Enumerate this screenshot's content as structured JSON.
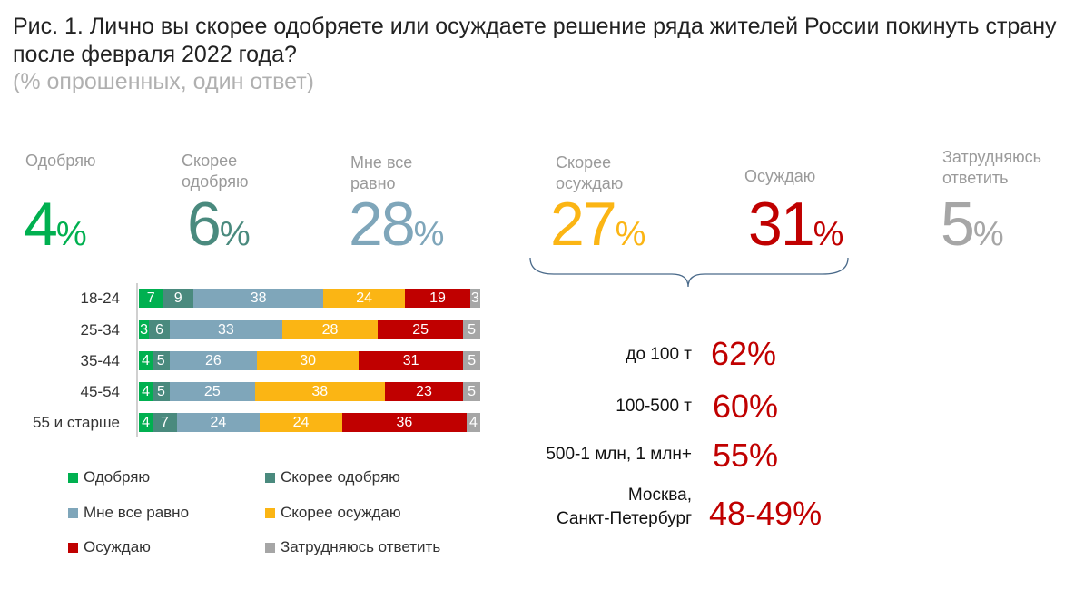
{
  "title": "Рис. 1. Лично вы скорее одобряете или осуждаете решение ряда жителей России покинуть страну после февраля 2022 года?",
  "subtitle": "(% опрошенных, один ответ)",
  "colors": {
    "approve": "#00b050",
    "rather_approve": "#4a8a7e",
    "indifferent": "#7fa6ba",
    "rather_condemn": "#fbb514",
    "condemn": "#c00000",
    "hard_to_say": "#a6a6a6"
  },
  "totals": [
    {
      "label": "Одобряю",
      "value": "4",
      "pct": "%"
    },
    {
      "label": "Скорее одобряю",
      "value": "6",
      "pct": "%"
    },
    {
      "label": "Мне все равно",
      "value": "28",
      "pct": "%"
    },
    {
      "label": "Скорее осуждаю",
      "value": "27",
      "pct": "%"
    },
    {
      "label": "Осуждаю",
      "value": "31",
      "pct": "%"
    },
    {
      "label": "Затрудняюсь ответить",
      "value": "5",
      "pct": "%"
    }
  ],
  "chart_data": {
    "type": "bar",
    "orientation": "horizontal-stacked",
    "categories": [
      "18-24",
      "25-34",
      "35-44",
      "45-54",
      "55 и старше"
    ],
    "series": [
      {
        "name": "Одобряю",
        "values": [
          7,
          3,
          4,
          4,
          4
        ]
      },
      {
        "name": "Скорее одобряю",
        "values": [
          9,
          6,
          5,
          5,
          7
        ]
      },
      {
        "name": "Мне все равно",
        "values": [
          38,
          33,
          26,
          25,
          24
        ]
      },
      {
        "name": "Скорее осуждаю",
        "values": [
          24,
          28,
          30,
          38,
          24
        ]
      },
      {
        "name": "Осуждаю",
        "values": [
          19,
          25,
          31,
          23,
          36
        ]
      },
      {
        "name": "Затрудняюсь ответить",
        "values": [
          3,
          5,
          5,
          5,
          4
        ]
      }
    ],
    "legend": "bottom"
  },
  "condemn_by_city": [
    {
      "label": "до 100 т",
      "value": "62%"
    },
    {
      "label": "100-500 т",
      "value": "60%"
    },
    {
      "label": "500-1 млн, 1 млн+",
      "value": "55%"
    },
    {
      "label": "Москва,\nСанкт-Петербург",
      "value": "48-49%"
    }
  ]
}
